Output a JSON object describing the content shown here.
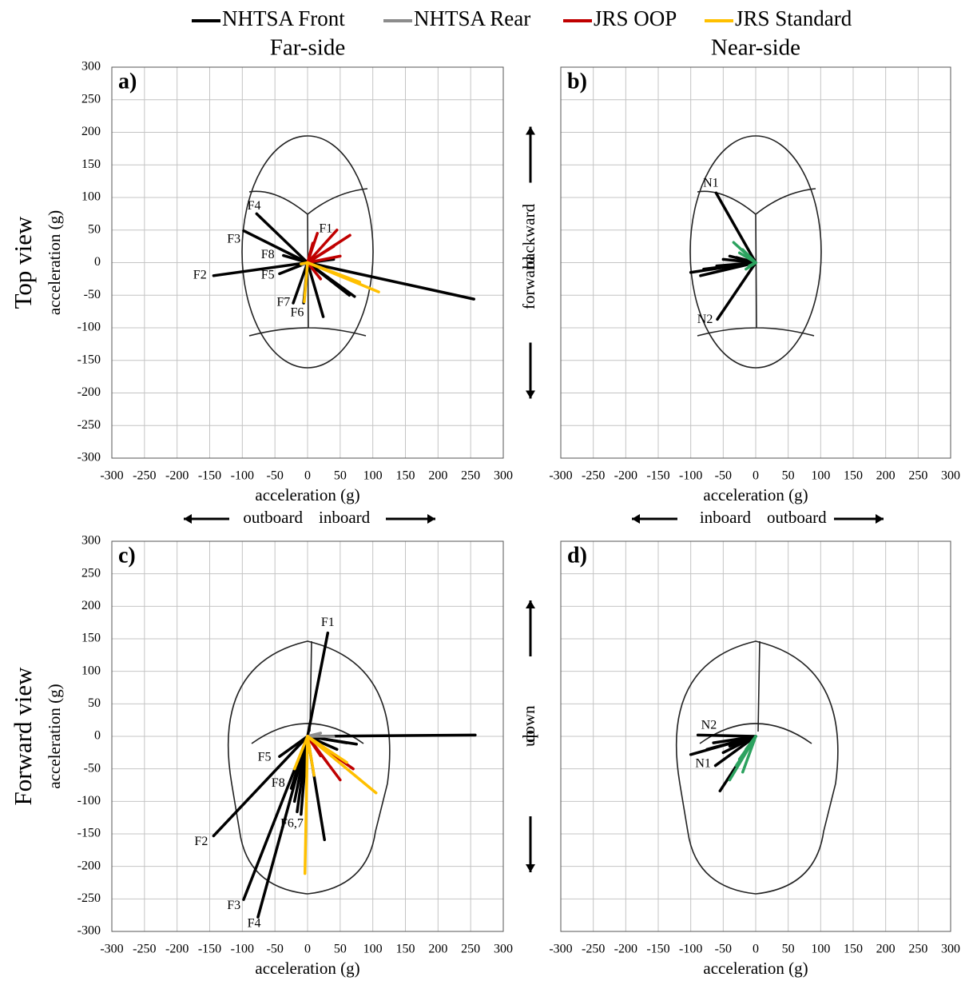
{
  "chart_data": [
    {
      "type": "vector",
      "title": "Far-side",
      "row_label": "Top view",
      "panel_label": "a)",
      "xlabel": "acceleration (g)",
      "ylabel": "acceleration (g)",
      "x_directions": [
        "outboard",
        "inboard"
      ],
      "xlim": [
        -300,
        300
      ],
      "ylim": [
        -300,
        300
      ],
      "xticks": [
        -300,
        -250,
        -200,
        -150,
        -100,
        -50,
        0,
        50,
        100,
        150,
        200,
        250,
        300
      ],
      "yticks": [
        -300,
        -250,
        -200,
        -150,
        -100,
        -50,
        0,
        50,
        100,
        150,
        200,
        250,
        300
      ],
      "ytick_labels": true,
      "grid": true,
      "series": [
        {
          "name": "NHTSA Front",
          "color": "#000000",
          "x": [
            -144,
            255,
            -98,
            -78,
            -37,
            -43,
            -22,
            24,
            64,
            72,
            -6,
            25,
            40
          ],
          "values": [
            -20,
            -56,
            49,
            75,
            11,
            -17,
            -62,
            -83,
            -50,
            -52,
            -62,
            -10,
            5
          ]
        },
        {
          "name": "NHTSA Rear",
          "color": "#8c8c8c",
          "x": [
            10,
            -8
          ],
          "values": [
            5,
            -3
          ]
        },
        {
          "name": "JRS OOP",
          "color": "#c00000",
          "x": [
            15,
            45,
            65,
            40,
            50,
            20,
            8
          ],
          "values": [
            45,
            50,
            42,
            25,
            10,
            -25,
            30
          ]
        },
        {
          "name": "JRS Standard",
          "color": "#ffc000",
          "x": [
            109,
            -5,
            80,
            -10
          ],
          "values": [
            -45,
            -60,
            -30,
            -2
          ]
        }
      ],
      "annotations": [
        {
          "text": "F1",
          "x": 28,
          "y": 51
        },
        {
          "text": "F2",
          "x": -165,
          "y": -20
        },
        {
          "text": "F3",
          "x": -113,
          "y": 35
        },
        {
          "text": "F4",
          "x": -82,
          "y": 86
        },
        {
          "text": "F8",
          "x": -61,
          "y": 11
        },
        {
          "text": "F5",
          "x": -61,
          "y": -20
        },
        {
          "text": "F7",
          "x": -37,
          "y": -62
        },
        {
          "text": "F6",
          "x": -16,
          "y": -78
        }
      ]
    },
    {
      "type": "vector",
      "title": "Near-side",
      "panel_label": "b)",
      "xlabel": "acceleration (g)",
      "x_directions": [
        "inboard",
        "outboard"
      ],
      "y_directions": [
        "backward",
        "forward"
      ],
      "xlim": [
        -300,
        300
      ],
      "ylim": [
        -300,
        300
      ],
      "xticks": [
        -300,
        -250,
        -200,
        -150,
        -100,
        -50,
        0,
        50,
        100,
        150,
        200,
        250,
        300
      ],
      "yticks": [
        -300,
        -250,
        -200,
        -150,
        -100,
        -50,
        0,
        50,
        100,
        150,
        200,
        250,
        300
      ],
      "ytick_labels": false,
      "grid": true,
      "series": [
        {
          "color": "#000000",
          "x": [
            -61,
            -59,
            -100,
            -85,
            -70,
            -60,
            -50,
            -40,
            -30,
            -80
          ],
          "values": [
            107,
            -87,
            -15,
            -20,
            -10,
            -5,
            5,
            10,
            8,
            -10
          ]
        },
        {
          "color": "#2ca25f",
          "x": [
            -34,
            -20,
            -15,
            -25,
            -10
          ],
          "values": [
            31,
            20,
            -10,
            15,
            -5
          ]
        }
      ],
      "annotations": [
        {
          "text": "N1",
          "x": -69,
          "y": 121
        },
        {
          "text": "N2",
          "x": -78,
          "y": -88
        }
      ]
    },
    {
      "type": "vector",
      "row_label": "Forward view",
      "panel_label": "c)",
      "xlabel": "acceleration (g)",
      "ylabel": "acceleration (g)",
      "xlim": [
        -300,
        300
      ],
      "ylim": [
        -300,
        300
      ],
      "xticks": [
        -300,
        -250,
        -200,
        -150,
        -100,
        -50,
        0,
        50,
        100,
        150,
        200,
        250,
        300
      ],
      "yticks": [
        -300,
        -250,
        -200,
        -150,
        -100,
        -50,
        0,
        50,
        100,
        150,
        200,
        250,
        300
      ],
      "ytick_labels": true,
      "grid": true,
      "series": [
        {
          "color": "#000000",
          "x": [
            31,
            257,
            -144,
            -98,
            -76,
            -43,
            -25,
            -16,
            -10,
            -20,
            26,
            60,
            75,
            45
          ],
          "values": [
            159,
            2,
            -153,
            -251,
            -278,
            -31,
            -80,
            -116,
            -120,
            -100,
            -159,
            -10,
            -12,
            -20
          ]
        },
        {
          "color": "#8c8c8c",
          "x": [
            40,
            20
          ],
          "values": [
            0,
            5
          ]
        },
        {
          "color": "#c00000",
          "x": [
            50,
            70,
            30,
            20
          ],
          "values": [
            -67,
            -50,
            -40,
            -30
          ]
        },
        {
          "color": "#ffc000",
          "x": [
            -4,
            105,
            10,
            -20,
            60
          ],
          "values": [
            -211,
            -87,
            -60,
            -50,
            -40
          ]
        }
      ],
      "annotations": [
        {
          "text": "F1",
          "x": 31,
          "y": 174
        },
        {
          "text": "F2",
          "x": -163,
          "y": -163
        },
        {
          "text": "F3",
          "x": -113,
          "y": -261
        },
        {
          "text": "F4",
          "x": -82,
          "y": -289
        },
        {
          "text": "F5",
          "x": -66,
          "y": -33
        },
        {
          "text": "F8",
          "x": -45,
          "y": -73
        },
        {
          "text": "F6,7",
          "x": -24,
          "y": -135
        }
      ]
    },
    {
      "type": "vector",
      "panel_label": "d)",
      "xlabel": "acceleration (g)",
      "y_directions": [
        "down",
        "up"
      ],
      "xlim": [
        -300,
        300
      ],
      "ylim": [
        -300,
        300
      ],
      "xticks": [
        -300,
        -250,
        -200,
        -150,
        -100,
        -50,
        0,
        50,
        100,
        150,
        200,
        250,
        300
      ],
      "yticks": [
        -300,
        -250,
        -200,
        -150,
        -100,
        -50,
        0,
        50,
        100,
        150,
        200,
        250,
        300
      ],
      "ytick_labels": false,
      "grid": true,
      "series": [
        {
          "color": "#000000",
          "x": [
            -100,
            -55,
            -89,
            -62,
            -75,
            -65,
            -50,
            -40
          ],
          "values": [
            -28,
            -84,
            2,
            -45,
            -20,
            -10,
            -25,
            -15
          ]
        },
        {
          "color": "#2ca25f",
          "x": [
            -40,
            -20,
            -30,
            -25,
            -15
          ],
          "values": [
            -67,
            -55,
            -45,
            -35,
            -20
          ]
        }
      ],
      "annotations": [
        {
          "text": "N2",
          "x": -72,
          "y": 16
        },
        {
          "text": "N1",
          "x": -81,
          "y": -43
        }
      ]
    }
  ]
}
